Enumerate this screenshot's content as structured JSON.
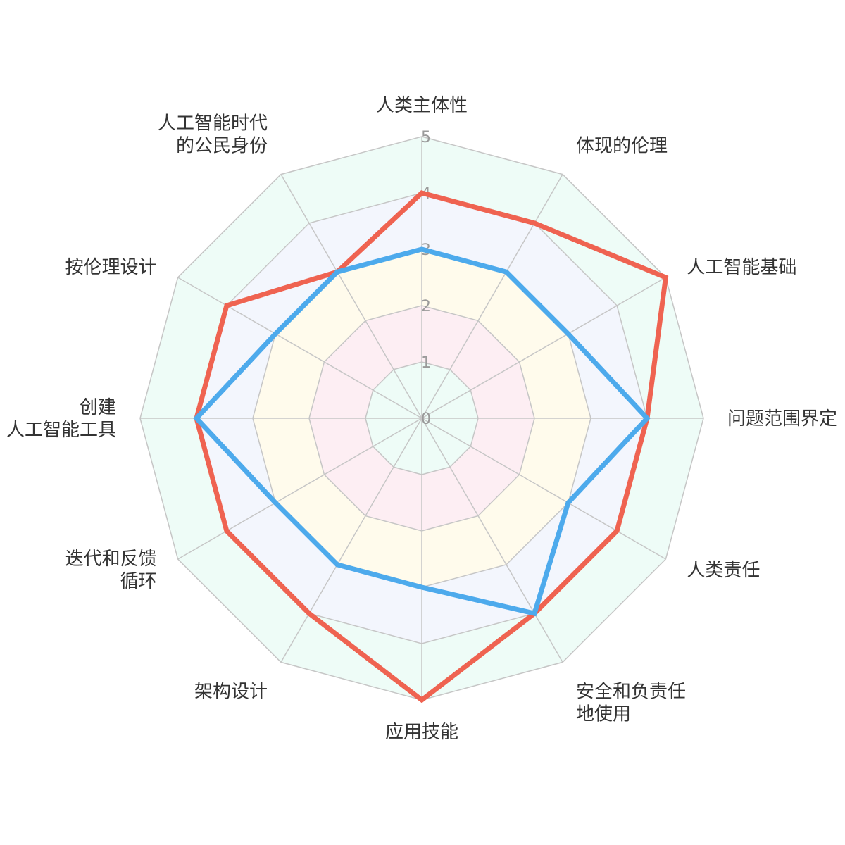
{
  "chart_data": {
    "type": "radar",
    "axes": [
      [
        "人类主体性"
      ],
      [
        "体现的伦理"
      ],
      [
        "人工智能基础"
      ],
      [
        "问题范围界定"
      ],
      [
        "人类责任"
      ],
      [
        "安全和负责任",
        "地使用"
      ],
      [
        "应用技能"
      ],
      [
        "架构设计"
      ],
      [
        "迭代和反馈",
        "循环"
      ],
      [
        "创建",
        "人工智能工具"
      ],
      [
        "按伦理设计"
      ],
      [
        "人工智能时代",
        "的公民身份"
      ]
    ],
    "ticks": [
      "0",
      "1",
      "2",
      "3",
      "4",
      "5"
    ],
    "rmax": 5,
    "band_colors": [
      "#eefcf7",
      "#fdeef3",
      "#fffbec",
      "#f3f6fd",
      "#eefcf7"
    ],
    "series": [
      {
        "color": "#ef6351",
        "values": [
          4,
          4,
          5,
          4,
          4,
          4,
          5,
          4,
          4,
          4,
          4,
          3
        ]
      },
      {
        "color": "#4daaec",
        "values": [
          3,
          3,
          3,
          4,
          3,
          4,
          3,
          3,
          3,
          4,
          3,
          3
        ]
      }
    ]
  }
}
